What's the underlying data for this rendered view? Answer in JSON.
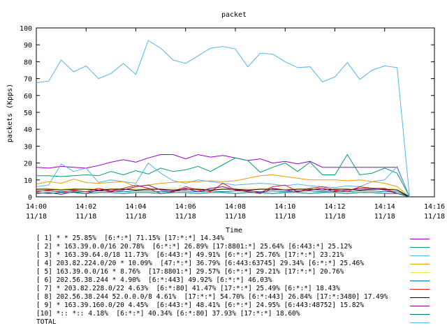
{
  "chart_data": {
    "type": "line",
    "title": "packet",
    "xlabel": "Time",
    "ylabel": "packets (Kpps)",
    "ylim": [
      0,
      100
    ],
    "yticks": [
      0,
      10,
      20,
      30,
      40,
      50,
      60,
      70,
      80,
      90,
      100
    ],
    "xlim": [
      "14:00",
      "14:16"
    ],
    "xticks": [
      {
        "time": "14:00",
        "date": "11/18"
      },
      {
        "time": "14:02",
        "date": "11/18"
      },
      {
        "time": "14:04",
        "date": "11/18"
      },
      {
        "time": "14:06",
        "date": "11/18"
      },
      {
        "time": "14:08",
        "date": "11/18"
      },
      {
        "time": "14:10",
        "date": "11/18"
      },
      {
        "time": "14:12",
        "date": "11/18"
      },
      {
        "time": "14:14",
        "date": "11/18"
      },
      {
        "time": "14:16",
        "date": "11/18"
      }
    ],
    "x": [
      "14:00:00",
      "14:00:30",
      "14:01:00",
      "14:01:30",
      "14:02:00",
      "14:02:30",
      "14:03:00",
      "14:03:30",
      "14:04:00",
      "14:04:30",
      "14:05:00",
      "14:05:30",
      "14:06:00",
      "14:06:30",
      "14:07:00",
      "14:07:30",
      "14:08:00",
      "14:08:30",
      "14:09:00",
      "14:09:30",
      "14:10:00",
      "14:10:30",
      "14:11:00",
      "14:11:30",
      "14:12:00",
      "14:12:30",
      "14:13:00",
      "14:13:30",
      "14:14:00",
      "14:14:30",
      "14:15:00"
    ],
    "grid": false,
    "legend_position": "bottom",
    "series": [
      {
        "name": "[ 1] * * 25.85%  [6:*:*] 71.15% [17:*:*] 14.34%",
        "color": "#9400d3",
        "values": [
          17.5,
          17,
          18,
          17.5,
          17,
          18.5,
          20.5,
          22,
          20.5,
          23,
          25,
          25,
          22.5,
          25,
          23.5,
          24.5,
          23,
          21.5,
          22.5,
          20,
          21,
          19.5,
          21,
          17.5,
          17.5,
          17.5,
          17.5,
          17.5,
          17.5,
          17.5,
          0
        ]
      },
      {
        "name": "[ 2] * 163.39.0.0/16 20.78%  [6:*:*] 26.89% [17:8801:*] 25.64% [6:443:*] 25.12%",
        "color": "#009e73",
        "values": [
          12.5,
          12.5,
          12,
          12.5,
          13,
          12.5,
          15,
          13,
          15.5,
          13.5,
          17,
          15,
          16,
          18,
          15,
          19,
          23,
          21.5,
          14.5,
          17.5,
          20,
          15,
          20.5,
          13,
          13,
          25,
          13,
          14,
          17,
          14,
          0
        ]
      },
      {
        "name": "[ 3] * 163.39.64.0/18 11.73%  [6:443:*] 49.91% [6:*:*] 25.76% [17:*:*] 23.21%",
        "color": "#56b4e9",
        "values": [
          6,
          7,
          19.5,
          15,
          17,
          8.5,
          10,
          9,
          8,
          20,
          14,
          9.5,
          8,
          10,
          9,
          8,
          7,
          7.5,
          8,
          7.5,
          6.5,
          7.5,
          6.5,
          6,
          5.5,
          6.5,
          6,
          9,
          10,
          18,
          0
        ]
      },
      {
        "name": "[ 4] 203.82.224.0/20 * 10.09%  [47:*:*] 36.79% [6:443:63745] 29.34% [6:*:*] 25.46%",
        "color": "#e69f00",
        "values": [
          7.5,
          9,
          8,
          10.5,
          8.5,
          8,
          8.5,
          9,
          6,
          7,
          8,
          8.5,
          9,
          9,
          9.5,
          9,
          9.5,
          11,
          12.5,
          13,
          12,
          11,
          10,
          10,
          10,
          9.5,
          10,
          9,
          8,
          6,
          0
        ]
      },
      {
        "name": "[ 5] 163.39.0.0/16 * 8.76%  [17:8801:*] 29.57% [6:*:*] 29.21% [17:*:*] 20.76%",
        "color": "#f0e442",
        "values": [
          5,
          5,
          4.5,
          5,
          4.5,
          5,
          5,
          4.5,
          5,
          5,
          5,
          5,
          5,
          5,
          5,
          5,
          5,
          5,
          5,
          5,
          5,
          5,
          5,
          5,
          5,
          5,
          5,
          5,
          5,
          4.5,
          0
        ]
      },
      {
        "name": "[ 6] 202.56.38.244 * 4.90%  [6:*:443] 49.92% [6:*:*] 46.03%",
        "color": "#0072b2",
        "values": [
          3.5,
          3.5,
          3,
          3.5,
          3,
          3.5,
          3.5,
          3,
          3.5,
          3.5,
          3,
          3.5,
          3.5,
          3,
          3.5,
          3,
          3.5,
          3.5,
          3,
          3.5,
          3,
          3.5,
          3.5,
          3,
          3.5,
          3,
          3.5,
          3.5,
          3,
          3,
          0
        ]
      },
      {
        "name": "[ 7] * 203.82.228.0/22 4.63%  [6:*:80] 41.47% [17:*:*] 25.49% [6:*:*] 18.43%",
        "color": "#e51e10",
        "values": [
          3,
          4,
          2.5,
          4,
          3,
          5,
          3.5,
          5,
          7,
          5,
          2,
          3,
          6,
          4,
          3,
          8,
          4,
          4,
          2.5,
          6,
          7,
          3,
          5,
          6,
          4,
          3,
          6,
          5,
          5,
          2,
          0
        ]
      },
      {
        "name": "[ 8] 202.56.38.244 52.0.0.0/8 4.61%  [17:*:*] 54.70% [6:*:443] 26.84% [17:*:3480] 17.49%",
        "color": "#000000",
        "values": [
          4.5,
          4.5,
          4,
          4.5,
          4.5,
          4,
          4.5,
          4.5,
          4,
          4.5,
          4.5,
          4,
          4.5,
          4.5,
          4,
          4.5,
          4.5,
          4,
          4.5,
          4.5,
          4,
          4.5,
          4.5,
          4,
          4.5,
          4.5,
          4,
          4.5,
          4.5,
          4,
          0
        ]
      },
      {
        "name": "[ 9] * 163.39.160.0/20 4.45%  [6:443:*] 48.41% [6:*:*] 24.95% [6:443:48752] 15.82%",
        "color": "#8b008b",
        "values": [
          2,
          2.5,
          1.5,
          3,
          2,
          4,
          3,
          4,
          6,
          7,
          4,
          3,
          5,
          3,
          5,
          6,
          4,
          3,
          2,
          5,
          4,
          3,
          4,
          5,
          3,
          4,
          5,
          5,
          4,
          2,
          0
        ]
      },
      {
        "name": "[10] *:: *:: 4.18%  [6:*:*] 40.34% [6:*:80] 37.93% [17:*:*] 18.60%",
        "color": "#00796b",
        "values": [
          2.5,
          2,
          2.5,
          2.5,
          2,
          2.5,
          2.5,
          2,
          2.5,
          2.5,
          2,
          2.5,
          2.5,
          2,
          2.5,
          2.5,
          2,
          2.5,
          2.5,
          2,
          2.5,
          2.5,
          2,
          2.5,
          2.5,
          2,
          2.5,
          2.5,
          2,
          2,
          0
        ]
      },
      {
        "name": "TOTAL",
        "color": "#56b4e9",
        "values": [
          67.5,
          68.5,
          81,
          74,
          77.5,
          70,
          73,
          79,
          72.5,
          92.5,
          88,
          81,
          79,
          83.5,
          88,
          89,
          87.5,
          77,
          85,
          84.5,
          80,
          76.5,
          77,
          68,
          71,
          79.5,
          69.5,
          75,
          77.5,
          76.5,
          0
        ]
      }
    ]
  }
}
